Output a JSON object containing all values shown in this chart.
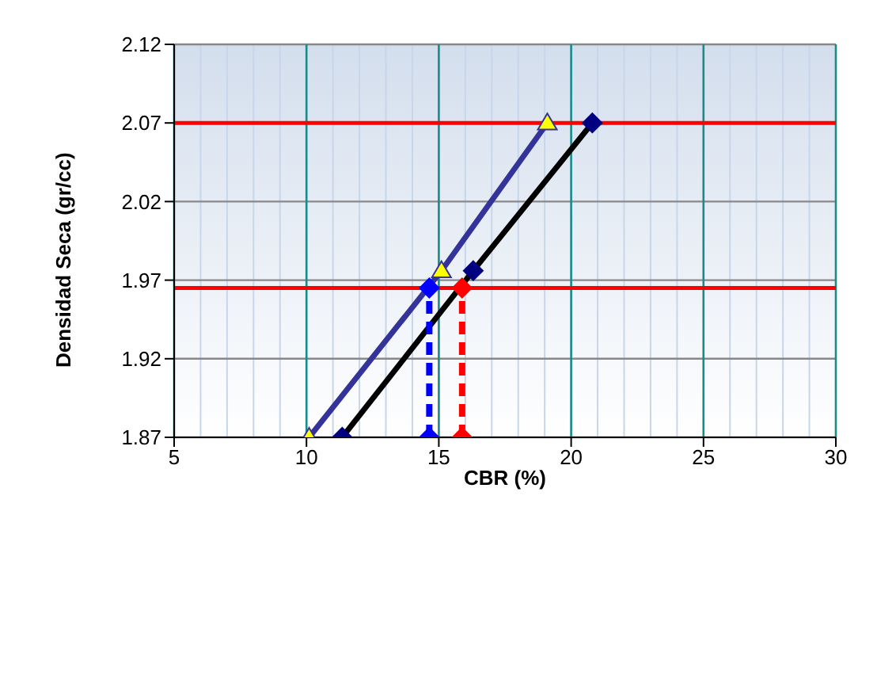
{
  "chart_data": {
    "type": "line",
    "xlabel": "CBR  (%)",
    "ylabel": "Densidad Seca (gr/cc)",
    "xlim": [
      5,
      30
    ],
    "xticks": [
      5,
      10,
      15,
      20,
      25,
      30
    ],
    "ylim": [
      1.87,
      2.12
    ],
    "yticks": [
      1.87,
      1.92,
      1.97,
      2.02,
      2.07,
      2.12
    ],
    "grid": true,
    "legend": false,
    "series": [
      {
        "color": "#333399",
        "x": [
          10.1,
          15.1,
          19.1
        ],
        "values": [
          1.87,
          1.976,
          2.07
        ],
        "marker": "triangle",
        "line_style": "solid"
      },
      {
        "color": "#000000",
        "x": [
          11.35,
          16.3,
          20.8
        ],
        "values": [
          1.87,
          1.976,
          2.07
        ],
        "marker": "diamond",
        "line_style": "solid"
      },
      {
        "color": "#0000ff",
        "x": [
          14.64,
          14.64
        ],
        "values": [
          1.87,
          1.965
        ],
        "marker": "diamond",
        "line_style": "dashed"
      },
      {
        "color": "#ff0000",
        "x": [
          15.88,
          15.88
        ],
        "values": [
          1.87,
          1.965
        ],
        "marker": "diamond",
        "line_style": "dashed"
      }
    ],
    "ref_lines": [
      {
        "axis": "y",
        "value": 2.07,
        "color": "#ff0000"
      },
      {
        "axis": "y",
        "value": 1.965,
        "color": "#ff0000"
      }
    ]
  }
}
